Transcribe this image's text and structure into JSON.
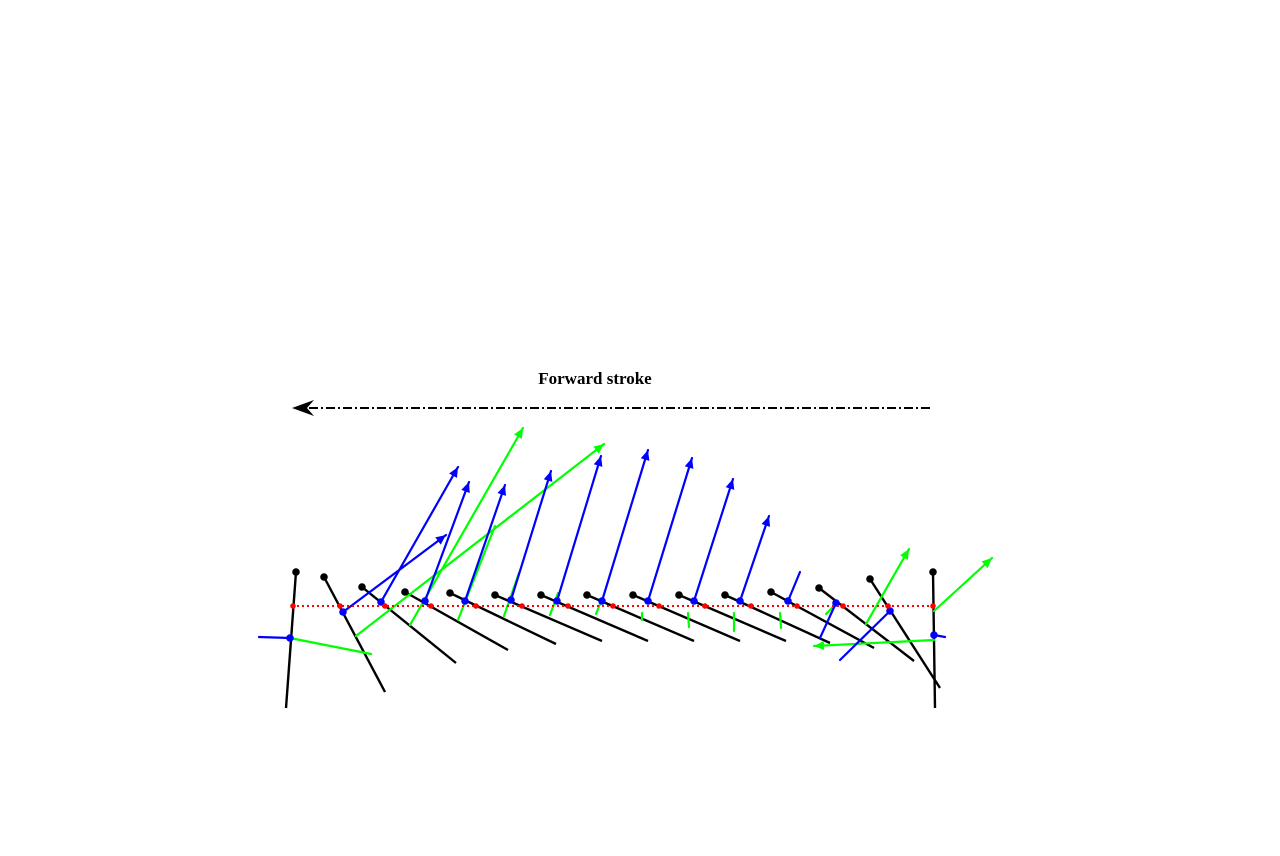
{
  "diagram": {
    "label": "Forward stroke",
    "colors": {
      "paddle": "#000000",
      "blue_vector": "#0000ff",
      "green_vector": "#00ff00",
      "water_line": "#ff0000",
      "arrow": "#000000"
    },
    "icons": {
      "direction_arrow": "arrow-left-icon",
      "vector_head": "arrow-head-icon"
    },
    "frame_count": 15
  }
}
